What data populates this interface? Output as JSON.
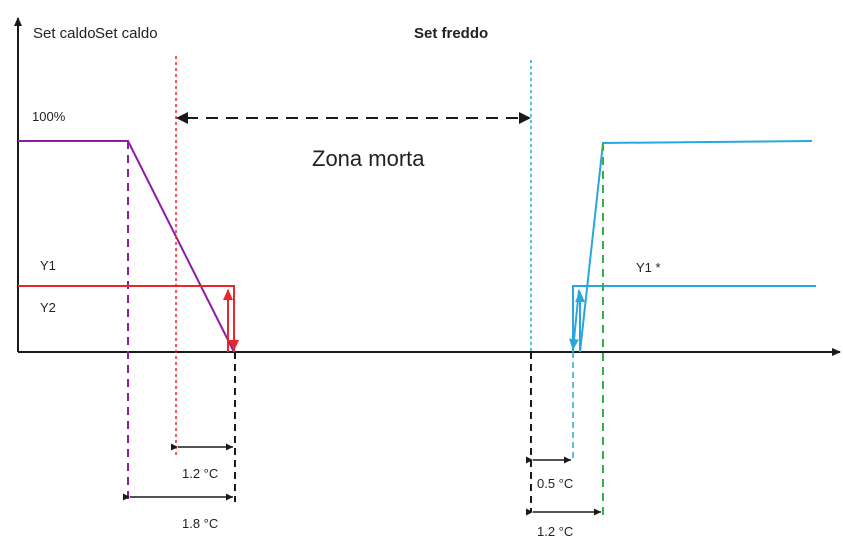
{
  "labels": {
    "axis_label_1": "Set caldo",
    "axis_label_2": "Set caldo",
    "set_freddo": "Set freddo",
    "pct_100": "100%",
    "y1": "Y1",
    "y2": "Y2",
    "y1_star": "Y1 *",
    "zona_morta": "Zona morta"
  },
  "dimensions": {
    "d_1_2_left": "1.2 °C",
    "d_1_8": "1.8 °C",
    "d_0_5": "0.5 °C",
    "d_1_2_right": "1.2 °C"
  },
  "colors": {
    "axis": "#1a1a1a",
    "heat_ramp": "#8b1fa0",
    "heat_step": "#e8262b",
    "cool": "#2aa6de",
    "cool_ramp_start": "#2db34a",
    "dim": "#1a1a1a"
  }
}
